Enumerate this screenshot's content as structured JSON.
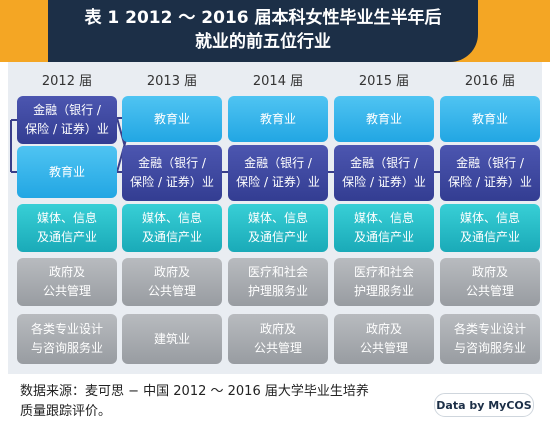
{
  "title": {
    "line1": "表 1  2012 ～ 2016 届本科女性毕业生半年后",
    "line2": "就业的前五位行业"
  },
  "years": [
    "2012 届",
    "2013 届",
    "2014 届",
    "2015 届",
    "2016 届"
  ],
  "columns": [
    {
      "rows": [
        {
          "lines": [
            "金融（银行 /",
            "保险 / 证券）业"
          ],
          "color": "#3b44a0"
        },
        {
          "lines": [
            "教育业"
          ],
          "color": "#2eb0ea"
        },
        {
          "lines": [
            "媒体、信息",
            "及通信产业"
          ],
          "color": "#25bcc8"
        },
        {
          "lines": [
            "政府及",
            "公共管理"
          ],
          "color": "#a8acb1"
        },
        {
          "lines": [
            "各类专业设计",
            "与咨询服务业"
          ],
          "color": "#a8acb1"
        }
      ]
    },
    {
      "rows": [
        {
          "lines": [
            "教育业"
          ],
          "color": "#2eb0ea"
        },
        {
          "lines": [
            "金融（银行 /",
            "保险 / 证券）业"
          ],
          "color": "#3b44a0"
        },
        {
          "lines": [
            "媒体、信息",
            "及通信产业"
          ],
          "color": "#25bcc8"
        },
        {
          "lines": [
            "政府及",
            "公共管理"
          ],
          "color": "#a8acb1"
        },
        {
          "lines": [
            "建筑业"
          ],
          "color": "#a8acb1"
        }
      ]
    },
    {
      "rows": [
        {
          "lines": [
            "教育业"
          ],
          "color": "#2eb0ea"
        },
        {
          "lines": [
            "金融（银行 /",
            "保险 / 证券）业"
          ],
          "color": "#3b44a0"
        },
        {
          "lines": [
            "媒体、信息",
            "及通信产业"
          ],
          "color": "#25bcc8"
        },
        {
          "lines": [
            "医疗和社会",
            "护理服务业"
          ],
          "color": "#a8acb1"
        },
        {
          "lines": [
            "政府及",
            "公共管理"
          ],
          "color": "#a8acb1"
        }
      ]
    },
    {
      "rows": [
        {
          "lines": [
            "教育业"
          ],
          "color": "#2eb0ea"
        },
        {
          "lines": [
            "金融（银行 /",
            "保险 / 证券）业"
          ],
          "color": "#3b44a0"
        },
        {
          "lines": [
            "媒体、信息",
            "及通信产业"
          ],
          "color": "#25bcc8"
        },
        {
          "lines": [
            "医疗和社会",
            "护理服务业"
          ],
          "color": "#a8acb1"
        },
        {
          "lines": [
            "政府及",
            "公共管理"
          ],
          "color": "#a8acb1"
        }
      ]
    },
    {
      "rows": [
        {
          "lines": [
            "教育业"
          ],
          "color": "#2eb0ea"
        },
        {
          "lines": [
            "金融（银行 /",
            "保险 / 证券）业"
          ],
          "color": "#3b44a0"
        },
        {
          "lines": [
            "媒体、信息",
            "及通信产业"
          ],
          "color": "#25bcc8"
        },
        {
          "lines": [
            "政府及",
            "公共管理"
          ],
          "color": "#a8acb1"
        },
        {
          "lines": [
            "各类专业设计",
            "与咨询服务业"
          ],
          "color": "#a8acb1"
        }
      ]
    }
  ],
  "footer": {
    "source_line1": "数据来源：麦可思 − 中国 2012 ～ 2016 届大学毕业生培养",
    "source_line2": "质量跟踪评价。",
    "logo": "Data by MyCOS"
  }
}
